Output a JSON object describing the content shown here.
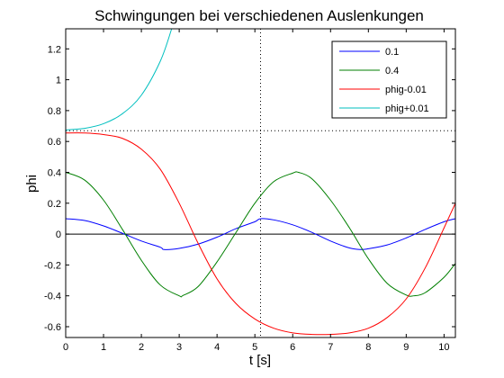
{
  "chart_data": {
    "type": "line",
    "title": "Schwingungen bei verschiedenen Auslenkungen",
    "xlabel": "t [s]",
    "ylabel": "phi",
    "xlim": [
      0,
      10.3
    ],
    "ylim": [
      -0.67,
      1.33
    ],
    "xticks": [
      0,
      1,
      2,
      3,
      4,
      5,
      6,
      7,
      8,
      9,
      10
    ],
    "yticks": [
      -0.6,
      -0.4,
      -0.2,
      0,
      0.2,
      0.4,
      0.6,
      0.8,
      1,
      1.2
    ],
    "ytick_labels": [
      "-0.6",
      "-0.4",
      "-0.2",
      "0",
      "0.2",
      "0.4",
      "0.6",
      "0.8",
      "1",
      "1.2"
    ],
    "grid": false,
    "legend_position": "top-right",
    "reference_lines": [
      {
        "orientation": "horizontal",
        "value": 0,
        "style": "solid"
      },
      {
        "orientation": "horizontal",
        "value": 0.67,
        "style": "dotted"
      },
      {
        "orientation": "vertical",
        "value": 5.15,
        "style": "dotted"
      }
    ],
    "series": [
      {
        "name": "0.1",
        "color": "#0000ff",
        "x": [
          0,
          0.5,
          1,
          1.5,
          2,
          2.5,
          2.6,
          3,
          3.5,
          4,
          4.5,
          5,
          5.15,
          5.5,
          6,
          6.5,
          7,
          7.5,
          7.8,
          8,
          8.5,
          9,
          9.5,
          10,
          10.3
        ],
        "y": [
          0.1,
          0.088,
          0.053,
          0.005,
          -0.045,
          -0.085,
          -0.1,
          -0.093,
          -0.065,
          -0.02,
          0.035,
          0.08,
          0.1,
          0.092,
          0.06,
          0.012,
          -0.045,
          -0.09,
          -0.1,
          -0.095,
          -0.07,
          -0.025,
          0.03,
          0.08,
          0.1
        ]
      },
      {
        "name": "0.4",
        "color": "#007f00",
        "x": [
          0,
          0.5,
          1,
          1.5,
          2,
          2.5,
          3,
          3.1,
          3.5,
          4,
          4.5,
          5,
          5.5,
          6,
          6.15,
          6.5,
          7,
          7.5,
          8,
          8.5,
          9,
          9.2,
          9.5,
          10,
          10.3
        ],
        "y": [
          0.4,
          0.35,
          0.22,
          0.03,
          -0.17,
          -0.33,
          -0.4,
          -0.398,
          -0.34,
          -0.18,
          0.01,
          0.2,
          0.34,
          0.395,
          0.4,
          0.36,
          0.22,
          0.04,
          -0.16,
          -0.32,
          -0.395,
          -0.4,
          -0.38,
          -0.28,
          -0.19
        ]
      },
      {
        "name": "phig-0.01",
        "color": "#ff0000",
        "x": [
          0,
          0.5,
          1,
          1.5,
          2,
          2.5,
          3,
          3.5,
          4,
          4.5,
          5,
          5.5,
          6,
          6.5,
          7,
          7.5,
          8,
          8.5,
          9,
          9.5,
          10,
          10.3
        ],
        "y": [
          0.655,
          0.655,
          0.645,
          0.62,
          0.55,
          0.42,
          0.2,
          -0.06,
          -0.29,
          -0.45,
          -0.55,
          -0.61,
          -0.64,
          -0.65,
          -0.65,
          -0.64,
          -0.61,
          -0.54,
          -0.42,
          -0.22,
          0.04,
          0.2
        ]
      },
      {
        "name": "phig+0.01",
        "color": "#00bfbf",
        "x": [
          0,
          0.5,
          1,
          1.5,
          2,
          2.5,
          2.8,
          3
        ],
        "y": [
          0.675,
          0.685,
          0.715,
          0.78,
          0.9,
          1.12,
          1.33,
          1.5
        ]
      }
    ]
  }
}
